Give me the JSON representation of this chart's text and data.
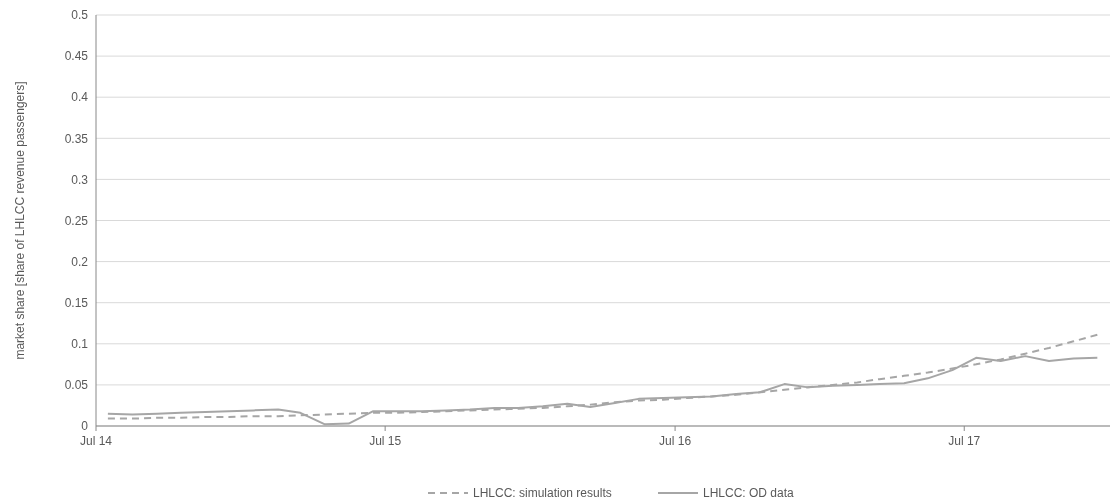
{
  "chart_data": {
    "type": "line",
    "ylabel": "market share [share of LHLCC revenue passengers]",
    "x": [
      "2014-07-16",
      "2014-08-16",
      "2014-09-16",
      "2014-10-16",
      "2014-11-16",
      "2014-12-16",
      "2015-01-16",
      "2015-02-16",
      "2015-03-16",
      "2015-04-16",
      "2015-05-16",
      "2015-06-16",
      "2015-07-16",
      "2015-08-16",
      "2015-09-16",
      "2015-10-16",
      "2015-11-16",
      "2015-12-16",
      "2016-01-16",
      "2016-02-16",
      "2016-03-16",
      "2016-04-16",
      "2016-05-16",
      "2016-06-16",
      "2016-07-16",
      "2016-08-16",
      "2016-09-16",
      "2016-10-16",
      "2016-11-16",
      "2016-12-16",
      "2017-01-16",
      "2017-02-16",
      "2017-03-16",
      "2017-04-16",
      "2017-05-16",
      "2017-06-16",
      "2017-07-16",
      "2017-08-16",
      "2017-09-16",
      "2017-10-16",
      "2017-11-16",
      "2017-12-16"
    ],
    "series": [
      {
        "name": "LHLCC: simulation results",
        "color": "#a6a6a6",
        "line_style": "dashed",
        "values": [
          0.009,
          0.009,
          0.01,
          0.01,
          0.011,
          0.011,
          0.012,
          0.012,
          0.013,
          0.014,
          0.015,
          0.016,
          0.016,
          0.017,
          0.018,
          0.019,
          0.02,
          0.021,
          0.022,
          0.024,
          0.026,
          0.029,
          0.031,
          0.032,
          0.034,
          0.036,
          0.038,
          0.041,
          0.044,
          0.047,
          0.05,
          0.053,
          0.057,
          0.061,
          0.065,
          0.07,
          0.075,
          0.081,
          0.088,
          0.095,
          0.103,
          0.111
        ]
      },
      {
        "name": "LHLCC: OD data",
        "color": "#a6a6a6",
        "line_style": "solid",
        "values": [
          0.015,
          0.014,
          0.015,
          0.016,
          0.017,
          0.018,
          0.019,
          0.02,
          0.016,
          0.002,
          0.003,
          0.018,
          0.018,
          0.018,
          0.019,
          0.02,
          0.022,
          0.022,
          0.024,
          0.027,
          0.023,
          0.028,
          0.033,
          0.034,
          0.035,
          0.036,
          0.039,
          0.041,
          0.051,
          0.047,
          0.049,
          0.05,
          0.051,
          0.052,
          0.058,
          0.068,
          0.083,
          0.079,
          0.085,
          0.079,
          0.082,
          0.083
        ]
      }
    ],
    "xlim": [
      "2014-07-01",
      "2018-01-01"
    ],
    "xticks": [
      {
        "value": "2014-07-01",
        "label": "Jul 14"
      },
      {
        "value": "2015-07-01",
        "label": "Jul 15"
      },
      {
        "value": "2016-07-01",
        "label": "Jul 16"
      },
      {
        "value": "2017-07-01",
        "label": "Jul 17"
      }
    ],
    "ylim": [
      0,
      0.5
    ],
    "yticks": [
      0,
      0.05,
      0.1,
      0.15,
      0.2,
      0.25,
      0.3,
      0.35,
      0.4,
      0.45,
      0.5
    ],
    "grid": "y",
    "legend": "bottom",
    "marker": "none"
  }
}
